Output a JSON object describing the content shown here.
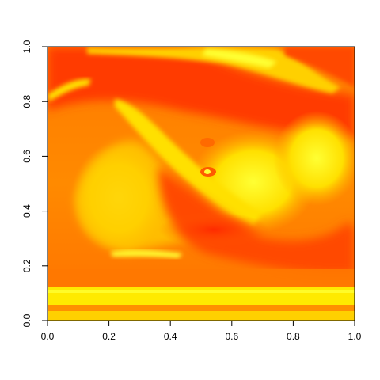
{
  "chart_data": {
    "type": "heatmap",
    "title": "",
    "xlabel": "",
    "ylabel": "",
    "xlim": [
      0,
      1
    ],
    "ylim": [
      0,
      1
    ],
    "x_ticks": [
      0.0,
      0.2,
      0.4,
      0.6,
      0.8,
      1.0
    ],
    "y_ticks": [
      0.0,
      0.2,
      0.4,
      0.6,
      0.8,
      1.0
    ],
    "x_tick_labels": [
      "0.0",
      "0.2",
      "0.4",
      "0.6",
      "0.8",
      "1.0"
    ],
    "y_tick_labels": [
      "0.0",
      "0.2",
      "0.4",
      "0.6",
      "0.8",
      "1.0"
    ],
    "colormap": [
      "#ff0000",
      "#ff4d00",
      "#ff8000",
      "#ffb300",
      "#ffe000",
      "#ffff33"
    ],
    "grid": false,
    "legend": "none"
  }
}
